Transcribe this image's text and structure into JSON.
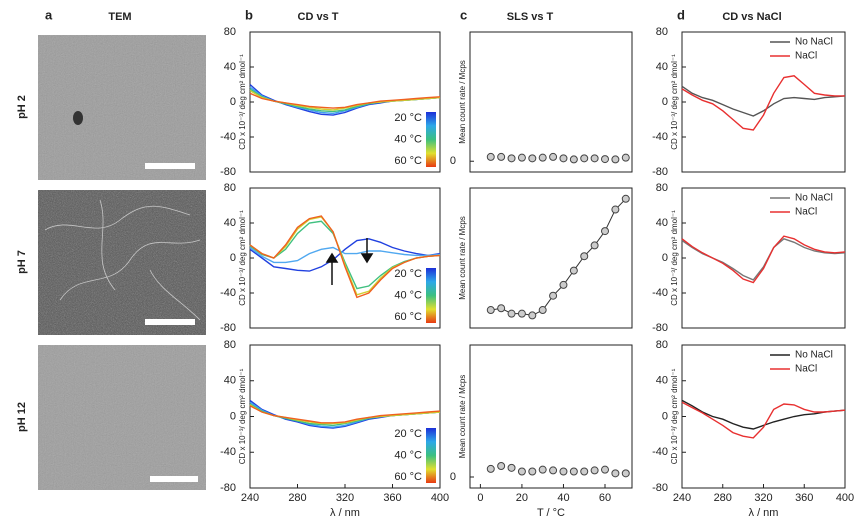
{
  "figure": {
    "panels": [
      {
        "letter": "a",
        "title": "TEM"
      },
      {
        "letter": "b",
        "title": "CD vs T"
      },
      {
        "letter": "c",
        "title": "SLS vs T"
      },
      {
        "letter": "d",
        "title": "CD vs NaCl"
      }
    ],
    "rows": [
      "pH 2",
      "pH 7",
      "pH 12"
    ]
  },
  "chart_data": [
    {
      "type": "line",
      "x": [
        240,
        250,
        260,
        270,
        280,
        290,
        300,
        310,
        320,
        330,
        340,
        350,
        360,
        370,
        380,
        390,
        400
      ],
      "xlim": [
        240,
        400
      ],
      "ylim": [
        -80,
        80
      ],
      "yticks": [
        -80,
        -40,
        0,
        40,
        80
      ],
      "ylabel": "CD x 10⁻³/ deg cm² dmol⁻¹",
      "colorbar": {
        "labels": [
          "20 °C",
          "40 °C",
          "60 °C"
        ],
        "colors": [
          "#1c2fd8",
          "#2ea8e8",
          "#3cc080",
          "#e0e030",
          "#e83a12"
        ]
      },
      "series": [
        {
          "color": "#2040e0",
          "values": [
            20,
            8,
            2,
            -3,
            -7,
            -11,
            -14,
            -15,
            -12,
            -7,
            -3,
            -1,
            1,
            2,
            3,
            4,
            5
          ]
        },
        {
          "color": "#40a0f0",
          "values": [
            17,
            7,
            1,
            -2,
            -6,
            -9,
            -12,
            -13,
            -10,
            -6,
            -2,
            0,
            1,
            2,
            3,
            4,
            5
          ]
        },
        {
          "color": "#40c080",
          "values": [
            15,
            6,
            1,
            -2,
            -5,
            -8,
            -10,
            -11,
            -9,
            -5,
            -2,
            0,
            1,
            2,
            3,
            4,
            5
          ]
        },
        {
          "color": "#d0d030",
          "values": [
            13,
            5,
            1,
            -1,
            -4,
            -6,
            -8,
            -9,
            -7,
            -4,
            -1,
            0,
            1,
            2,
            3,
            4,
            5
          ]
        },
        {
          "color": "#f06020",
          "values": [
            10,
            4,
            1,
            -1,
            -3,
            -5,
            -6,
            -7,
            -6,
            -3,
            -1,
            1,
            2,
            3,
            4,
            5,
            6
          ]
        }
      ]
    },
    {
      "type": "scatter",
      "x": [
        5,
        10,
        15,
        20,
        25,
        30,
        35,
        40,
        45,
        50,
        55,
        60,
        65,
        70
      ],
      "xlim": [
        -5,
        73
      ],
      "ylim": [
        -0.3,
        3.6
      ],
      "yticks": [
        0
      ],
      "ylabel": "Mean count rate / Mcps",
      "color": "#cccccc",
      "values": [
        0.12,
        0.12,
        0.08,
        0.1,
        0.08,
        0.1,
        0.12,
        0.08,
        0.05,
        0.08,
        0.08,
        0.06,
        0.05,
        0.1
      ]
    },
    {
      "type": "line",
      "x": [
        240,
        250,
        260,
        270,
        280,
        290,
        300,
        310,
        320,
        330,
        340,
        350,
        360,
        370,
        380,
        390,
        400
      ],
      "xlim": [
        240,
        400
      ],
      "ylim": [
        -80,
        80
      ],
      "yticks": [
        -80,
        -40,
        0,
        40,
        80
      ],
      "ylabel": "CD x 10⁻³/ deg cm² dmol⁻¹",
      "legend": "upper right",
      "series": [
        {
          "name": "No NaCl",
          "color": "#555555",
          "values": [
            18,
            10,
            5,
            2,
            -3,
            -8,
            -12,
            -16,
            -10,
            -2,
            4,
            5,
            4,
            3,
            5,
            6,
            7
          ]
        },
        {
          "name": "NaCl",
          "color": "#e83030",
          "values": [
            15,
            8,
            2,
            -2,
            -10,
            -20,
            -30,
            -32,
            -15,
            10,
            28,
            30,
            20,
            10,
            8,
            7,
            7
          ]
        }
      ]
    },
    {
      "type": "line",
      "x": [
        240,
        250,
        260,
        270,
        280,
        290,
        300,
        310,
        320,
        330,
        340,
        350,
        360,
        370,
        380,
        390,
        400
      ],
      "xlim": [
        240,
        400
      ],
      "ylim": [
        -80,
        80
      ],
      "yticks": [
        -80,
        -40,
        0,
        40,
        80
      ],
      "ylabel": "CD x 10⁻³/ deg cm² dmol⁻¹",
      "colorbar": {
        "labels": [
          "20 °C",
          "40 °C",
          "60 °C"
        ],
        "colors": [
          "#1c2fd8",
          "#2ea8e8",
          "#3cc080",
          "#e0e030",
          "#e83a12"
        ]
      },
      "series": [
        {
          "color": "#2040e0",
          "values": [
            10,
            0,
            -10,
            -12,
            -14,
            -15,
            -10,
            -2,
            10,
            20,
            22,
            18,
            12,
            8,
            5,
            3,
            5
          ]
        },
        {
          "color": "#50a8f0",
          "values": [
            12,
            2,
            -5,
            -5,
            -3,
            5,
            10,
            12,
            5,
            5,
            8,
            8,
            6,
            4,
            3,
            3,
            4
          ]
        },
        {
          "color": "#40c080",
          "values": [
            14,
            4,
            0,
            10,
            28,
            40,
            42,
            28,
            -5,
            -35,
            -32,
            -20,
            -10,
            -4,
            0,
            2,
            3
          ]
        },
        {
          "color": "#d0d030",
          "values": [
            15,
            5,
            0,
            13,
            33,
            44,
            47,
            30,
            -8,
            -42,
            -38,
            -23,
            -11,
            -5,
            0,
            2,
            3
          ]
        },
        {
          "color": "#f06020",
          "values": [
            15,
            5,
            0,
            15,
            35,
            45,
            48,
            30,
            -10,
            -45,
            -40,
            -25,
            -12,
            -5,
            0,
            2,
            3
          ]
        }
      ]
    },
    {
      "type": "line",
      "marker": "circle",
      "x": [
        5,
        10,
        15,
        20,
        25,
        30,
        35,
        40,
        45,
        50,
        55,
        60,
        65,
        70
      ],
      "xlim": [
        -5,
        73
      ],
      "ylim": [
        -0.3,
        3.6
      ],
      "ylabel": "Mean count rate / Mcps",
      "color": "#cccccc",
      "values": [
        0.2,
        0.25,
        0.1,
        0.1,
        0.05,
        0.2,
        0.6,
        0.9,
        1.3,
        1.7,
        2.0,
        2.4,
        3.0,
        3.3
      ]
    },
    {
      "type": "line",
      "x": [
        240,
        250,
        260,
        270,
        280,
        290,
        300,
        310,
        320,
        330,
        340,
        350,
        360,
        370,
        380,
        390,
        400
      ],
      "xlim": [
        240,
        400
      ],
      "ylim": [
        -80,
        80
      ],
      "yticks": [
        -80,
        -40,
        0,
        40,
        80
      ],
      "ylabel": "CD x 10⁻³/ deg cm² dmol⁻¹",
      "legend": "upper right",
      "series": [
        {
          "name": "No NaCl",
          "color": "#777777",
          "values": [
            20,
            12,
            5,
            0,
            -5,
            -12,
            -20,
            -25,
            -10,
            12,
            22,
            18,
            12,
            8,
            6,
            5,
            6
          ]
        },
        {
          "name": "NaCl",
          "color": "#e83030",
          "values": [
            22,
            13,
            6,
            0,
            -6,
            -14,
            -24,
            -28,
            -12,
            12,
            25,
            22,
            15,
            10,
            7,
            6,
            7
          ]
        }
      ]
    },
    {
      "type": "line",
      "x": [
        240,
        250,
        260,
        270,
        280,
        290,
        300,
        310,
        320,
        330,
        340,
        350,
        360,
        370,
        380,
        390,
        400
      ],
      "xlim": [
        240,
        400
      ],
      "ylim": [
        -80,
        80
      ],
      "yticks": [
        -80,
        -40,
        0,
        40,
        80
      ],
      "xticks": [
        240,
        280,
        320,
        360,
        400
      ],
      "xlabel": "λ / nm",
      "ylabel": "CD x 10⁻³/ deg cm² dmol⁻¹",
      "colorbar": {
        "labels": [
          "20 °C",
          "40 °C",
          "60 °C"
        ],
        "colors": [
          "#1c2fd8",
          "#2ea8e8",
          "#3cc080",
          "#e0e030",
          "#e83a12"
        ]
      },
      "series": [
        {
          "color": "#2040e0",
          "values": [
            18,
            8,
            2,
            -3,
            -6,
            -10,
            -12,
            -13,
            -11,
            -7,
            -3,
            -1,
            1,
            2,
            3,
            4,
            5
          ]
        },
        {
          "color": "#40a0f0",
          "values": [
            16,
            7,
            1,
            -2,
            -5,
            -9,
            -11,
            -12,
            -10,
            -6,
            -2,
            0,
            1,
            2,
            3,
            4,
            5
          ]
        },
        {
          "color": "#40c080",
          "values": [
            14,
            6,
            1,
            -2,
            -5,
            -8,
            -9,
            -10,
            -8,
            -5,
            -2,
            0,
            1,
            2,
            3,
            4,
            5
          ]
        },
        {
          "color": "#d0d030",
          "values": [
            13,
            5,
            1,
            -1,
            -4,
            -6,
            -8,
            -8,
            -7,
            -4,
            -1,
            0,
            1,
            2,
            3,
            4,
            5
          ]
        },
        {
          "color": "#f06020",
          "values": [
            12,
            5,
            1,
            -1,
            -3,
            -5,
            -7,
            -7,
            -6,
            -3,
            -1,
            1,
            2,
            3,
            4,
            5,
            6
          ]
        }
      ]
    },
    {
      "type": "scatter",
      "x": [
        5,
        10,
        15,
        20,
        25,
        30,
        35,
        40,
        45,
        50,
        55,
        60,
        65,
        70
      ],
      "xlim": [
        -5,
        73
      ],
      "ylim": [
        -0.3,
        3.6
      ],
      "yticks": [
        0
      ],
      "xticks": [
        0,
        20,
        40,
        60
      ],
      "xlabel": "T / °C",
      "ylabel": "Mean count rate / Mcps",
      "color": "#cccccc",
      "values": [
        0.22,
        0.3,
        0.25,
        0.15,
        0.15,
        0.2,
        0.18,
        0.15,
        0.15,
        0.15,
        0.18,
        0.2,
        0.1,
        0.1
      ]
    },
    {
      "type": "line",
      "x": [
        240,
        250,
        260,
        270,
        280,
        290,
        300,
        310,
        320,
        330,
        340,
        350,
        360,
        370,
        380,
        390,
        400
      ],
      "xlim": [
        240,
        400
      ],
      "ylim": [
        -80,
        80
      ],
      "yticks": [
        -80,
        -40,
        0,
        40,
        80
      ],
      "xticks": [
        240,
        280,
        320,
        360,
        400
      ],
      "xlabel": "λ / nm",
      "ylabel": "CD x 10⁻³/ deg cm² dmol⁻¹",
      "legend": "upper right",
      "series": [
        {
          "name": "No NaCl",
          "color": "#222222",
          "values": [
            18,
            12,
            5,
            0,
            -3,
            -8,
            -12,
            -14,
            -10,
            -6,
            -3,
            0,
            2,
            3,
            5,
            6,
            7
          ]
        },
        {
          "name": "NaCl",
          "color": "#e83030",
          "values": [
            16,
            10,
            4,
            -3,
            -10,
            -18,
            -22,
            -24,
            -12,
            8,
            14,
            13,
            8,
            5,
            5,
            6,
            7
          ]
        }
      ]
    }
  ]
}
